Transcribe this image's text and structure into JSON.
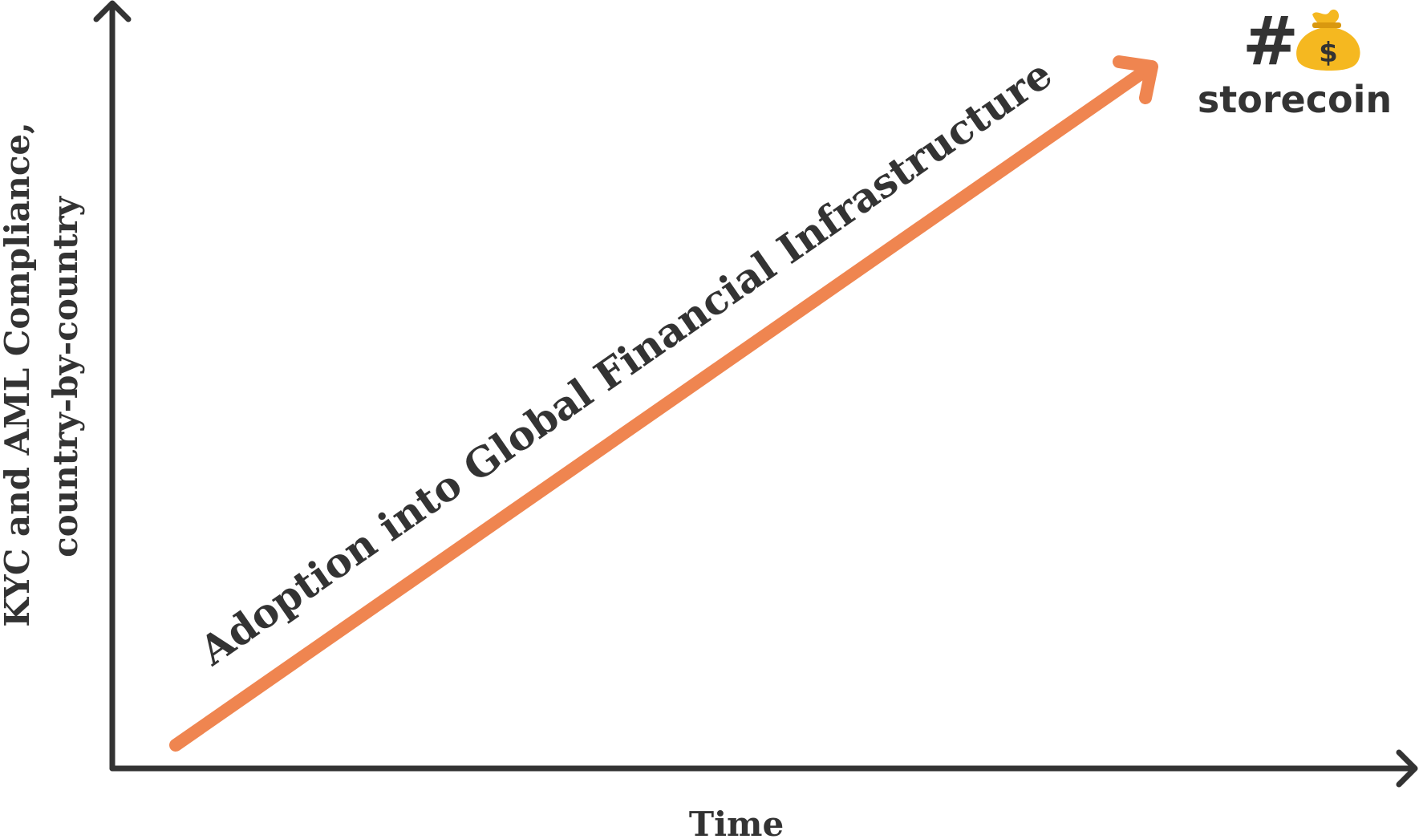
{
  "diagram": {
    "y_axis_label_line1": "KYC and AML Compliance,",
    "y_axis_label_line2": "country-by-country",
    "x_axis_label": "Time",
    "trend_label": "Adoption into Global Financial Infrastructure",
    "trend_color": "#ef8550",
    "axis_color": "#333333"
  },
  "logo": {
    "hash_symbol": "#",
    "icon": "money-bag-icon",
    "bag_symbol": "$",
    "name": "storecoin",
    "bag_color": "#f5b820",
    "bag_symbol_color": "#333333"
  }
}
